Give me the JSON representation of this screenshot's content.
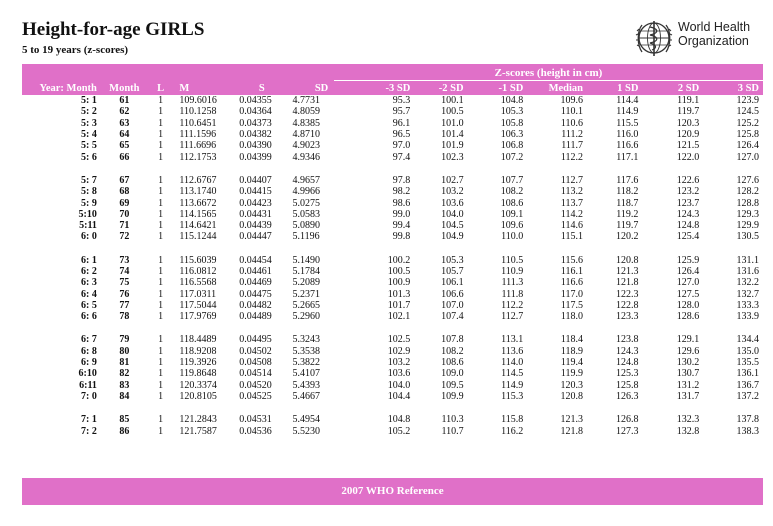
{
  "header": {
    "title": "Height-for-age GIRLS",
    "subtitle": "5 to 19 years (z-scores)",
    "logo_line1": "World Health",
    "logo_line2": "Organization",
    "logo_icon": "who-emblem-icon"
  },
  "colors": {
    "band": "#e070c8",
    "band_text": "#ffffff"
  },
  "table": {
    "group_label": "Z-scores (height in cm)",
    "columns": [
      "Year: Month",
      "Month",
      "L",
      "M",
      "S",
      "SD",
      "-3 SD",
      "-2 SD",
      "-1 SD",
      "Median",
      "1 SD",
      "2 SD",
      "3 SD"
    ],
    "groups": [
      [
        [
          "5: 1",
          "61",
          "1",
          "109.6016",
          "0.04355",
          "4.7731",
          "95.3",
          "100.1",
          "104.8",
          "109.6",
          "114.4",
          "119.1",
          "123.9"
        ],
        [
          "5: 2",
          "62",
          "1",
          "110.1258",
          "0.04364",
          "4.8059",
          "95.7",
          "100.5",
          "105.3",
          "110.1",
          "114.9",
          "119.7",
          "124.5"
        ],
        [
          "5: 3",
          "63",
          "1",
          "110.6451",
          "0.04373",
          "4.8385",
          "96.1",
          "101.0",
          "105.8",
          "110.6",
          "115.5",
          "120.3",
          "125.2"
        ],
        [
          "5: 4",
          "64",
          "1",
          "111.1596",
          "0.04382",
          "4.8710",
          "96.5",
          "101.4",
          "106.3",
          "111.2",
          "116.0",
          "120.9",
          "125.8"
        ],
        [
          "5: 5",
          "65",
          "1",
          "111.6696",
          "0.04390",
          "4.9023",
          "97.0",
          "101.9",
          "106.8",
          "111.7",
          "116.6",
          "121.5",
          "126.4"
        ],
        [
          "5: 6",
          "66",
          "1",
          "112.1753",
          "0.04399",
          "4.9346",
          "97.4",
          "102.3",
          "107.2",
          "112.2",
          "117.1",
          "122.0",
          "127.0"
        ]
      ],
      [
        [
          "5: 7",
          "67",
          "1",
          "112.6767",
          "0.04407",
          "4.9657",
          "97.8",
          "102.7",
          "107.7",
          "112.7",
          "117.6",
          "122.6",
          "127.6"
        ],
        [
          "5: 8",
          "68",
          "1",
          "113.1740",
          "0.04415",
          "4.9966",
          "98.2",
          "103.2",
          "108.2",
          "113.2",
          "118.2",
          "123.2",
          "128.2"
        ],
        [
          "5: 9",
          "69",
          "1",
          "113.6672",
          "0.04423",
          "5.0275",
          "98.6",
          "103.6",
          "108.6",
          "113.7",
          "118.7",
          "123.7",
          "128.8"
        ],
        [
          "5:10",
          "70",
          "1",
          "114.1565",
          "0.04431",
          "5.0583",
          "99.0",
          "104.0",
          "109.1",
          "114.2",
          "119.2",
          "124.3",
          "129.3"
        ],
        [
          "5:11",
          "71",
          "1",
          "114.6421",
          "0.04439",
          "5.0890",
          "99.4",
          "104.5",
          "109.6",
          "114.6",
          "119.7",
          "124.8",
          "129.9"
        ],
        [
          "6: 0",
          "72",
          "1",
          "115.1244",
          "0.04447",
          "5.1196",
          "99.8",
          "104.9",
          "110.0",
          "115.1",
          "120.2",
          "125.4",
          "130.5"
        ]
      ],
      [
        [
          "6: 1",
          "73",
          "1",
          "115.6039",
          "0.04454",
          "5.1490",
          "100.2",
          "105.3",
          "110.5",
          "115.6",
          "120.8",
          "125.9",
          "131.1"
        ],
        [
          "6: 2",
          "74",
          "1",
          "116.0812",
          "0.04461",
          "5.1784",
          "100.5",
          "105.7",
          "110.9",
          "116.1",
          "121.3",
          "126.4",
          "131.6"
        ],
        [
          "6: 3",
          "75",
          "1",
          "116.5568",
          "0.04469",
          "5.2089",
          "100.9",
          "106.1",
          "111.3",
          "116.6",
          "121.8",
          "127.0",
          "132.2"
        ],
        [
          "6: 4",
          "76",
          "1",
          "117.0311",
          "0.04475",
          "5.2371",
          "101.3",
          "106.6",
          "111.8",
          "117.0",
          "122.3",
          "127.5",
          "132.7"
        ],
        [
          "6: 5",
          "77",
          "1",
          "117.5044",
          "0.04482",
          "5.2665",
          "101.7",
          "107.0",
          "112.2",
          "117.5",
          "122.8",
          "128.0",
          "133.3"
        ],
        [
          "6: 6",
          "78",
          "1",
          "117.9769",
          "0.04489",
          "5.2960",
          "102.1",
          "107.4",
          "112.7",
          "118.0",
          "123.3",
          "128.6",
          "133.9"
        ]
      ],
      [
        [
          "6: 7",
          "79",
          "1",
          "118.4489",
          "0.04495",
          "5.3243",
          "102.5",
          "107.8",
          "113.1",
          "118.4",
          "123.8",
          "129.1",
          "134.4"
        ],
        [
          "6: 8",
          "80",
          "1",
          "118.9208",
          "0.04502",
          "5.3538",
          "102.9",
          "108.2",
          "113.6",
          "118.9",
          "124.3",
          "129.6",
          "135.0"
        ],
        [
          "6: 9",
          "81",
          "1",
          "119.3926",
          "0.04508",
          "5.3822",
          "103.2",
          "108.6",
          "114.0",
          "119.4",
          "124.8",
          "130.2",
          "135.5"
        ],
        [
          "6:10",
          "82",
          "1",
          "119.8648",
          "0.04514",
          "5.4107",
          "103.6",
          "109.0",
          "114.5",
          "119.9",
          "125.3",
          "130.7",
          "136.1"
        ],
        [
          "6:11",
          "83",
          "1",
          "120.3374",
          "0.04520",
          "5.4393",
          "104.0",
          "109.5",
          "114.9",
          "120.3",
          "125.8",
          "131.2",
          "136.7"
        ],
        [
          "7: 0",
          "84",
          "1",
          "120.8105",
          "0.04525",
          "5.4667",
          "104.4",
          "109.9",
          "115.3",
          "120.8",
          "126.3",
          "131.7",
          "137.2"
        ]
      ],
      [
        [
          "7: 1",
          "85",
          "1",
          "121.2843",
          "0.04531",
          "5.4954",
          "104.8",
          "110.3",
          "115.8",
          "121.3",
          "126.8",
          "132.3",
          "137.8"
        ],
        [
          "7: 2",
          "86",
          "1",
          "121.7587",
          "0.04536",
          "5.5230",
          "105.2",
          "110.7",
          "116.2",
          "121.8",
          "127.3",
          "132.8",
          "138.3"
        ]
      ]
    ]
  },
  "footer": {
    "reference": "2007 WHO Reference"
  }
}
